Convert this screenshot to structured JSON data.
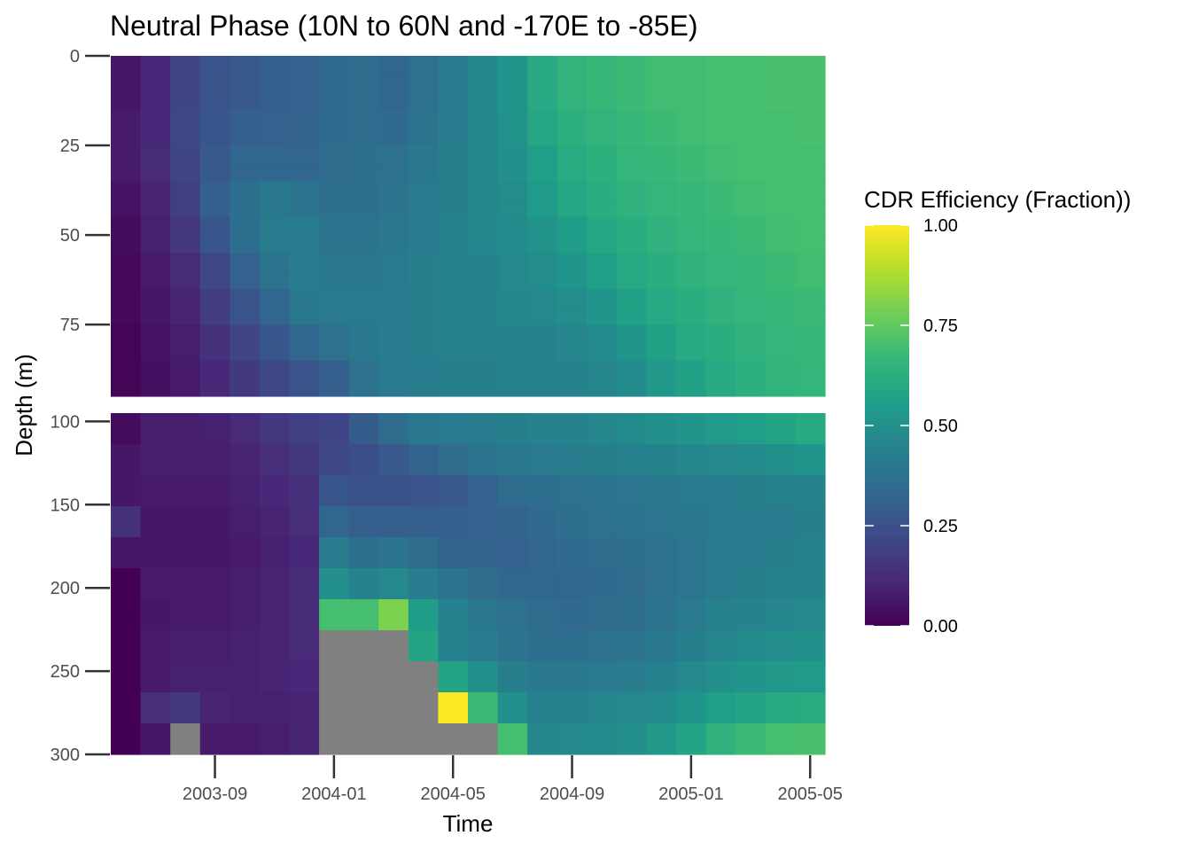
{
  "chart_data": {
    "type": "heatmap",
    "title": "Neutral Phase (10N to 60N and -170E to -85E)",
    "xlabel": "Time",
    "ylabel": "Depth (m)",
    "x_ticks": [
      "2003-09",
      "2004-01",
      "2004-05",
      "2004-09",
      "2005-01",
      "2005-05"
    ],
    "x_range": [
      "2003-06",
      "2005-05"
    ],
    "months": [
      "2003-06",
      "2003-07",
      "2003-08",
      "2003-09",
      "2003-10",
      "2003-11",
      "2003-12",
      "2004-01",
      "2004-02",
      "2004-03",
      "2004-04",
      "2004-05",
      "2004-06",
      "2004-07",
      "2004-08",
      "2004-09",
      "2004-10",
      "2004-11",
      "2004-12",
      "2005-01",
      "2005-02",
      "2005-03",
      "2005-04",
      "2005-05"
    ],
    "facets": [
      {
        "name": "upper",
        "y_ticks": [
          0,
          25,
          50,
          75
        ],
        "y_range": [
          0,
          95
        ],
        "depths": [
          0,
          5,
          10,
          15,
          20,
          25,
          30,
          35,
          40,
          45,
          50,
          55,
          60,
          65,
          70,
          75,
          80,
          85,
          90
        ],
        "values": [
          [
            0.06,
            0.11,
            0.21,
            0.26,
            0.28,
            0.3,
            0.31,
            0.34,
            0.35,
            0.33,
            0.37,
            0.42,
            0.46,
            0.52,
            0.6,
            0.65,
            0.67,
            0.68,
            0.69,
            0.69,
            0.7,
            0.7,
            0.71,
            0.71
          ],
          [
            0.06,
            0.11,
            0.21,
            0.26,
            0.28,
            0.3,
            0.31,
            0.34,
            0.35,
            0.33,
            0.37,
            0.42,
            0.46,
            0.52,
            0.6,
            0.65,
            0.67,
            0.68,
            0.69,
            0.69,
            0.7,
            0.7,
            0.71,
            0.71
          ],
          [
            0.06,
            0.11,
            0.21,
            0.26,
            0.28,
            0.3,
            0.31,
            0.34,
            0.35,
            0.33,
            0.37,
            0.42,
            0.46,
            0.52,
            0.6,
            0.65,
            0.67,
            0.68,
            0.69,
            0.69,
            0.7,
            0.7,
            0.71,
            0.71
          ],
          [
            0.07,
            0.11,
            0.22,
            0.27,
            0.3,
            0.31,
            0.32,
            0.34,
            0.35,
            0.34,
            0.38,
            0.42,
            0.46,
            0.51,
            0.59,
            0.63,
            0.65,
            0.67,
            0.68,
            0.69,
            0.7,
            0.7,
            0.7,
            0.71
          ],
          [
            0.07,
            0.11,
            0.22,
            0.27,
            0.3,
            0.31,
            0.32,
            0.34,
            0.35,
            0.34,
            0.38,
            0.42,
            0.46,
            0.51,
            0.59,
            0.63,
            0.65,
            0.67,
            0.68,
            0.69,
            0.7,
            0.7,
            0.7,
            0.71
          ],
          [
            0.07,
            0.12,
            0.21,
            0.28,
            0.33,
            0.33,
            0.33,
            0.35,
            0.36,
            0.37,
            0.4,
            0.43,
            0.46,
            0.5,
            0.56,
            0.61,
            0.63,
            0.66,
            0.67,
            0.68,
            0.69,
            0.7,
            0.7,
            0.7
          ],
          [
            0.07,
            0.12,
            0.21,
            0.28,
            0.33,
            0.33,
            0.33,
            0.35,
            0.36,
            0.37,
            0.4,
            0.43,
            0.46,
            0.5,
            0.56,
            0.61,
            0.63,
            0.66,
            0.67,
            0.68,
            0.69,
            0.7,
            0.7,
            0.7
          ],
          [
            0.05,
            0.1,
            0.19,
            0.3,
            0.36,
            0.4,
            0.38,
            0.36,
            0.36,
            0.38,
            0.41,
            0.43,
            0.46,
            0.49,
            0.54,
            0.59,
            0.62,
            0.64,
            0.66,
            0.67,
            0.68,
            0.69,
            0.7,
            0.7
          ],
          [
            0.05,
            0.1,
            0.19,
            0.3,
            0.36,
            0.4,
            0.38,
            0.36,
            0.36,
            0.38,
            0.41,
            0.43,
            0.46,
            0.49,
            0.54,
            0.59,
            0.62,
            0.64,
            0.66,
            0.67,
            0.68,
            0.69,
            0.7,
            0.7
          ],
          [
            0.03,
            0.09,
            0.16,
            0.27,
            0.36,
            0.42,
            0.42,
            0.38,
            0.38,
            0.4,
            0.42,
            0.44,
            0.46,
            0.48,
            0.51,
            0.55,
            0.59,
            0.62,
            0.64,
            0.66,
            0.67,
            0.68,
            0.69,
            0.7
          ],
          [
            0.03,
            0.09,
            0.16,
            0.27,
            0.36,
            0.42,
            0.42,
            0.38,
            0.38,
            0.4,
            0.42,
            0.44,
            0.46,
            0.48,
            0.51,
            0.55,
            0.59,
            0.62,
            0.64,
            0.66,
            0.67,
            0.68,
            0.69,
            0.7
          ],
          [
            0.02,
            0.07,
            0.12,
            0.22,
            0.31,
            0.38,
            0.42,
            0.4,
            0.4,
            0.41,
            0.43,
            0.44,
            0.45,
            0.47,
            0.49,
            0.52,
            0.56,
            0.6,
            0.62,
            0.64,
            0.66,
            0.67,
            0.68,
            0.69
          ],
          [
            0.02,
            0.07,
            0.12,
            0.22,
            0.31,
            0.38,
            0.42,
            0.4,
            0.4,
            0.41,
            0.43,
            0.44,
            0.45,
            0.47,
            0.49,
            0.52,
            0.56,
            0.6,
            0.62,
            0.64,
            0.66,
            0.67,
            0.68,
            0.69
          ],
          [
            0.02,
            0.06,
            0.1,
            0.18,
            0.26,
            0.33,
            0.4,
            0.41,
            0.41,
            0.42,
            0.43,
            0.44,
            0.45,
            0.46,
            0.47,
            0.49,
            0.52,
            0.57,
            0.6,
            0.62,
            0.64,
            0.66,
            0.67,
            0.68
          ],
          [
            0.02,
            0.06,
            0.1,
            0.18,
            0.26,
            0.33,
            0.4,
            0.41,
            0.41,
            0.42,
            0.43,
            0.44,
            0.45,
            0.46,
            0.47,
            0.49,
            0.52,
            0.57,
            0.6,
            0.62,
            0.64,
            0.66,
            0.67,
            0.68
          ],
          [
            0.01,
            0.05,
            0.08,
            0.14,
            0.21,
            0.27,
            0.33,
            0.37,
            0.4,
            0.42,
            0.43,
            0.44,
            0.44,
            0.45,
            0.45,
            0.46,
            0.48,
            0.52,
            0.57,
            0.6,
            0.62,
            0.64,
            0.66,
            0.67
          ],
          [
            0.01,
            0.05,
            0.08,
            0.14,
            0.21,
            0.27,
            0.33,
            0.37,
            0.4,
            0.42,
            0.43,
            0.44,
            0.44,
            0.45,
            0.45,
            0.46,
            0.48,
            0.52,
            0.57,
            0.6,
            0.62,
            0.64,
            0.66,
            0.67
          ],
          [
            0.01,
            0.04,
            0.07,
            0.11,
            0.17,
            0.22,
            0.26,
            0.3,
            0.37,
            0.41,
            0.42,
            0.43,
            0.43,
            0.44,
            0.44,
            0.45,
            0.46,
            0.48,
            0.53,
            0.57,
            0.6,
            0.63,
            0.65,
            0.66
          ],
          [
            0.01,
            0.04,
            0.07,
            0.11,
            0.17,
            0.22,
            0.26,
            0.3,
            0.37,
            0.41,
            0.42,
            0.43,
            0.43,
            0.44,
            0.44,
            0.45,
            0.46,
            0.48,
            0.53,
            0.57,
            0.6,
            0.63,
            0.65,
            0.66
          ]
        ]
      },
      {
        "name": "lower",
        "y_ticks": [
          100,
          150,
          200,
          250,
          300
        ],
        "y_range": [
          95,
          300
        ],
        "depths": [
          100,
          120,
          140,
          160,
          180,
          200,
          220,
          240,
          260,
          280,
          300
        ],
        "values": [
          [
            0.03,
            0.08,
            0.08,
            0.09,
            0.12,
            0.16,
            0.19,
            0.21,
            0.29,
            0.35,
            0.4,
            0.41,
            0.42,
            0.43,
            0.45,
            0.45,
            0.46,
            0.48,
            0.5,
            0.52,
            0.54,
            0.56,
            0.58,
            0.6
          ],
          [
            0.06,
            0.08,
            0.08,
            0.08,
            0.1,
            0.13,
            0.17,
            0.22,
            0.24,
            0.28,
            0.32,
            0.35,
            0.38,
            0.4,
            0.41,
            0.42,
            0.43,
            0.44,
            0.45,
            0.46,
            0.47,
            0.48,
            0.5,
            0.52
          ],
          [
            0.06,
            0.07,
            0.07,
            0.07,
            0.09,
            0.11,
            0.14,
            0.27,
            0.25,
            0.25,
            0.26,
            0.28,
            0.31,
            0.35,
            0.36,
            0.37,
            0.38,
            0.39,
            0.4,
            0.41,
            0.42,
            0.43,
            0.44,
            0.45
          ],
          [
            0.14,
            0.06,
            0.06,
            0.06,
            0.08,
            0.1,
            0.13,
            0.33,
            0.3,
            0.3,
            0.3,
            0.3,
            0.31,
            0.32,
            0.34,
            0.36,
            0.37,
            0.38,
            0.39,
            0.4,
            0.41,
            0.42,
            0.42,
            0.43
          ],
          [
            0.06,
            0.06,
            0.06,
            0.06,
            0.07,
            0.09,
            0.11,
            0.42,
            0.36,
            0.38,
            0.35,
            0.32,
            0.32,
            0.31,
            0.33,
            0.34,
            0.35,
            0.36,
            0.37,
            0.39,
            0.41,
            0.42,
            0.43,
            0.44
          ],
          [
            0.0,
            0.07,
            0.07,
            0.07,
            0.08,
            0.1,
            0.12,
            0.5,
            0.45,
            0.47,
            0.42,
            0.38,
            0.35,
            0.33,
            0.33,
            0.33,
            0.34,
            0.35,
            0.37,
            0.39,
            0.42,
            0.43,
            0.44,
            0.45
          ],
          [
            0.0,
            0.06,
            0.07,
            0.07,
            0.08,
            0.1,
            0.12,
            0.7,
            0.7,
            0.8,
            0.55,
            0.44,
            0.4,
            0.37,
            0.35,
            0.34,
            0.35,
            0.36,
            0.38,
            0.41,
            0.44,
            0.45,
            0.46,
            0.47
          ],
          [
            0.0,
            0.07,
            0.08,
            0.08,
            0.09,
            0.1,
            0.12,
            null,
            null,
            null,
            0.58,
            0.44,
            0.42,
            0.38,
            0.36,
            0.36,
            0.37,
            0.38,
            0.4,
            0.43,
            0.46,
            0.48,
            0.49,
            0.5
          ],
          [
            0.0,
            0.07,
            0.09,
            0.09,
            0.09,
            0.1,
            0.11,
            null,
            null,
            null,
            null,
            0.58,
            0.5,
            0.43,
            0.4,
            0.4,
            0.41,
            0.42,
            0.44,
            0.47,
            0.5,
            0.52,
            0.53,
            0.54
          ],
          [
            0.0,
            0.13,
            0.17,
            0.1,
            0.09,
            0.09,
            0.1,
            null,
            null,
            null,
            null,
            1.0,
            0.68,
            0.5,
            0.44,
            0.45,
            0.46,
            0.47,
            0.48,
            0.52,
            0.56,
            0.58,
            0.6,
            0.61
          ],
          [
            0.0,
            0.06,
            null,
            0.07,
            0.07,
            0.08,
            0.1,
            null,
            null,
            null,
            null,
            null,
            null,
            0.7,
            0.46,
            0.47,
            0.48,
            0.5,
            0.53,
            0.58,
            0.64,
            0.68,
            0.7,
            0.71
          ]
        ]
      }
    ],
    "missing_color": "#808080",
    "legend": {
      "title": "CDR Efficiency (Fraction))",
      "placement": "right",
      "ticks": [
        "1.00",
        "0.75",
        "0.50",
        "0.25",
        "0.00"
      ],
      "tick_values": [
        1.0,
        0.75,
        0.5,
        0.25,
        0.0
      ],
      "range": [
        0,
        1
      ],
      "palette": [
        "#440154",
        "#482878",
        "#3e4989",
        "#31688e",
        "#26828e",
        "#1f9e89",
        "#35b779",
        "#6ece58",
        "#b5de2b",
        "#fde725"
      ]
    }
  }
}
